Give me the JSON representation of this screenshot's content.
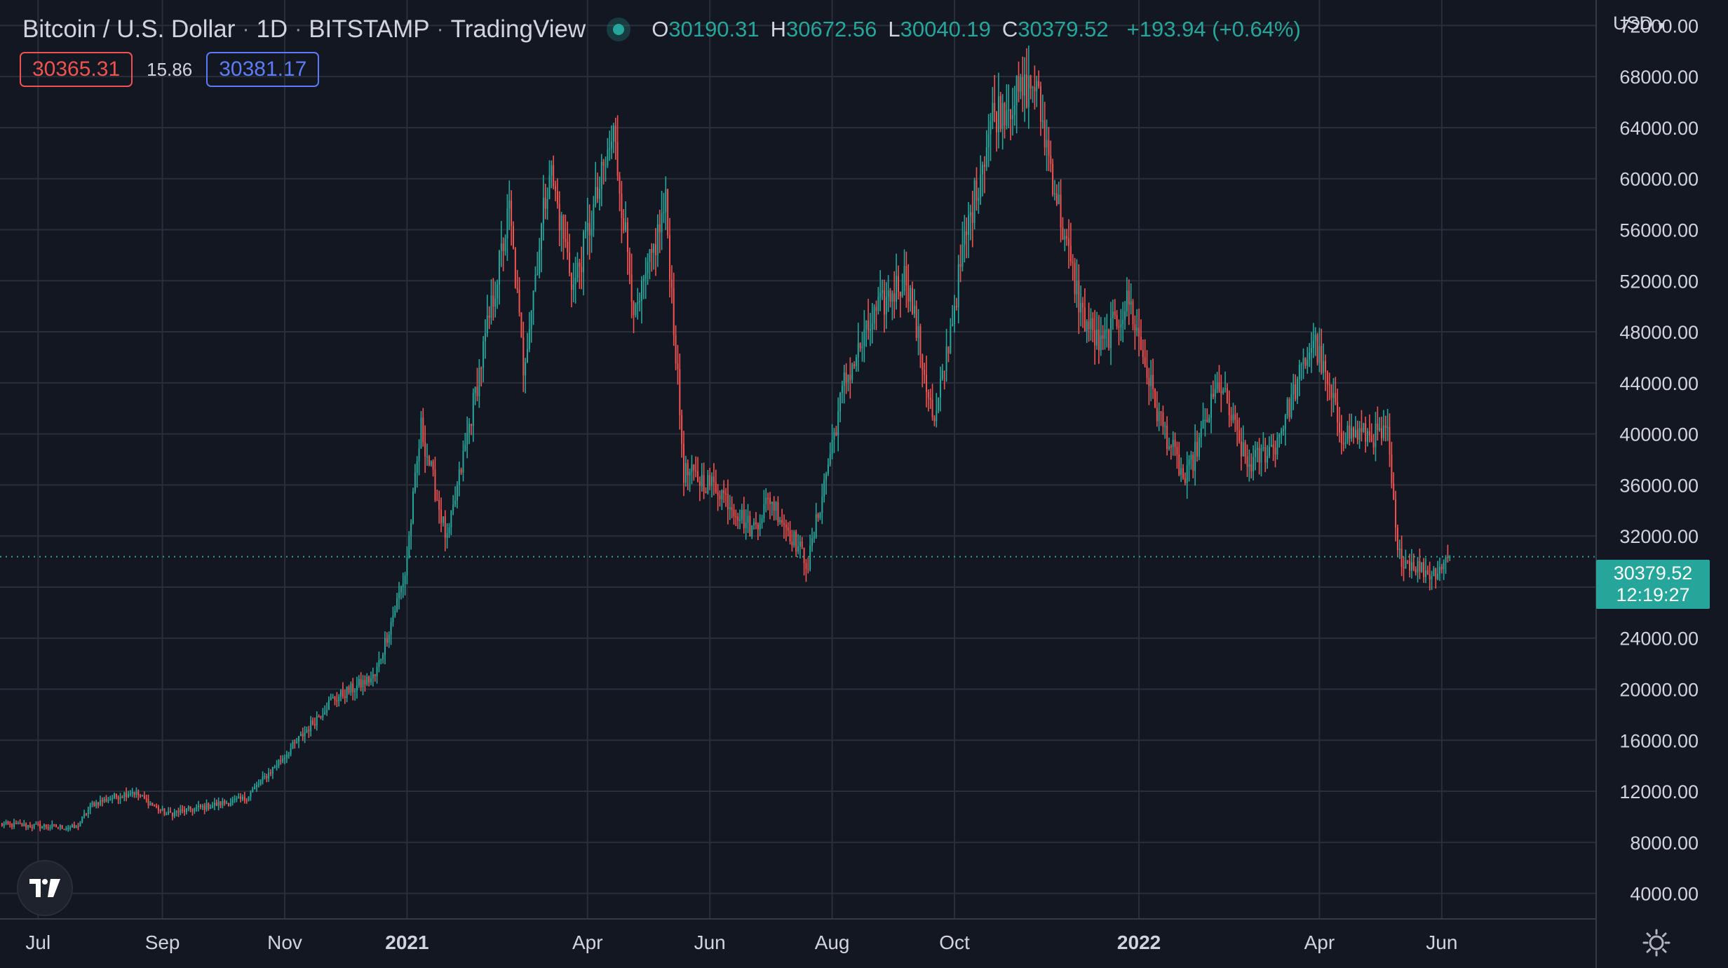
{
  "header": {
    "symbol": "Bitcoin / U.S. Dollar",
    "interval": "1D",
    "exchange": "BITSTAMP",
    "provider": "TradingView",
    "o_label": "O",
    "o_value": "30190.31",
    "h_label": "H",
    "h_value": "30672.56",
    "l_label": "L",
    "l_value": "30040.19",
    "c_label": "C",
    "c_value": "30379.52",
    "change": "+193.94 (+0.64%)"
  },
  "trade": {
    "sell_price": "30365.31",
    "spread": "15.86",
    "buy_price": "30381.17"
  },
  "price_scale": {
    "currency": "USD",
    "last_price": "30379.52",
    "countdown": "12:19:27"
  },
  "colors": {
    "background": "#131722",
    "grid": "#2a2e39",
    "up": "#26a69a",
    "down": "#ef5350",
    "text": "#d1d4dc",
    "accent_buy": "#5b7cf7"
  },
  "icons": {
    "logo": "tradingview-logo-icon",
    "settings": "gear-icon",
    "status": "market-status-dot-icon",
    "dropdown": "chevron-down-icon"
  },
  "chart_data": {
    "type": "candlestick",
    "title": "Bitcoin / U.S. Dollar · 1D · BITSTAMP",
    "ylim": [
      2000,
      74000
    ],
    "yticks": [
      72000,
      68000,
      64000,
      60000,
      56000,
      52000,
      48000,
      44000,
      40000,
      36000,
      32000,
      28000,
      24000,
      20000,
      16000,
      12000,
      8000,
      4000
    ],
    "ytick_labels": [
      "72000.00",
      "68000.00",
      "64000.00",
      "60000.00",
      "56000.00",
      "52000.00",
      "48000.00",
      "44000.00",
      "40000.00",
      "36000.00",
      "32000.00",
      "28000.00",
      "24000.00",
      "20000.00",
      "16000.00",
      "12000.00",
      "8000.00",
      "4000.00"
    ],
    "xticks": [
      {
        "date": "2020-07-01",
        "label": "Jul",
        "bold": false
      },
      {
        "date": "2020-09-01",
        "label": "Sep",
        "bold": false
      },
      {
        "date": "2020-11-01",
        "label": "Nov",
        "bold": false
      },
      {
        "date": "2021-01-01",
        "label": "2021",
        "bold": true
      },
      {
        "date": "2021-04-01",
        "label": "Apr",
        "bold": false
      },
      {
        "date": "2021-06-01",
        "label": "Jun",
        "bold": false
      },
      {
        "date": "2021-08-01",
        "label": "Aug",
        "bold": false
      },
      {
        "date": "2021-10-01",
        "label": "Oct",
        "bold": false
      },
      {
        "date": "2022-01-01",
        "label": "2022",
        "bold": true
      },
      {
        "date": "2022-04-01",
        "label": "Apr",
        "bold": false
      },
      {
        "date": "2022-06-01",
        "label": "Jun",
        "bold": false
      }
    ],
    "x_range": [
      "2020-06-12",
      "2022-08-17"
    ],
    "closes": [
      [
        "2020-06-12",
        9400
      ],
      [
        "2020-07-20",
        9150
      ],
      [
        "2020-07-28",
        11000
      ],
      [
        "2020-08-17",
        12000
      ],
      [
        "2020-09-03",
        10200
      ],
      [
        "2020-10-12",
        11400
      ],
      [
        "2020-10-21",
        12900
      ],
      [
        "2020-11-05",
        15500
      ],
      [
        "2020-11-24",
        19100
      ],
      [
        "2020-12-16",
        21000
      ],
      [
        "2020-12-31",
        29000
      ],
      [
        "2021-01-08",
        40500
      ],
      [
        "2021-01-21",
        31500
      ],
      [
        "2021-02-08",
        46500
      ],
      [
        "2021-02-21",
        57500
      ],
      [
        "2021-02-28",
        45200
      ],
      [
        "2021-03-13",
        61000
      ],
      [
        "2021-03-25",
        51500
      ],
      [
        "2021-04-14",
        63500
      ],
      [
        "2021-04-25",
        49000
      ],
      [
        "2021-05-10",
        58000
      ],
      [
        "2021-05-19",
        37000
      ],
      [
        "2021-06-05",
        35800
      ],
      [
        "2021-06-22",
        32500
      ],
      [
        "2021-07-01",
        35000
      ],
      [
        "2021-07-20",
        29800
      ],
      [
        "2021-08-07",
        44000
      ],
      [
        "2021-08-23",
        49500
      ],
      [
        "2021-09-07",
        52500
      ],
      [
        "2021-09-21",
        40500
      ],
      [
        "2021-10-06",
        55000
      ],
      [
        "2021-10-20",
        65000
      ],
      [
        "2021-11-10",
        67500
      ],
      [
        "2021-11-26",
        54500
      ],
      [
        "2021-12-04",
        49200
      ],
      [
        "2021-12-13",
        46800
      ],
      [
        "2021-12-27",
        50500
      ],
      [
        "2022-01-10",
        41800
      ],
      [
        "2022-01-24",
        36200
      ],
      [
        "2022-02-10",
        44000
      ],
      [
        "2022-02-24",
        37500
      ],
      [
        "2022-03-10",
        39200
      ],
      [
        "2022-03-29",
        47500
      ],
      [
        "2022-04-12",
        40100
      ],
      [
        "2022-05-05",
        39800
      ],
      [
        "2022-05-10",
        30500
      ],
      [
        "2022-05-27",
        29000
      ],
      [
        "2022-06-05",
        30379.52
      ]
    ]
  }
}
